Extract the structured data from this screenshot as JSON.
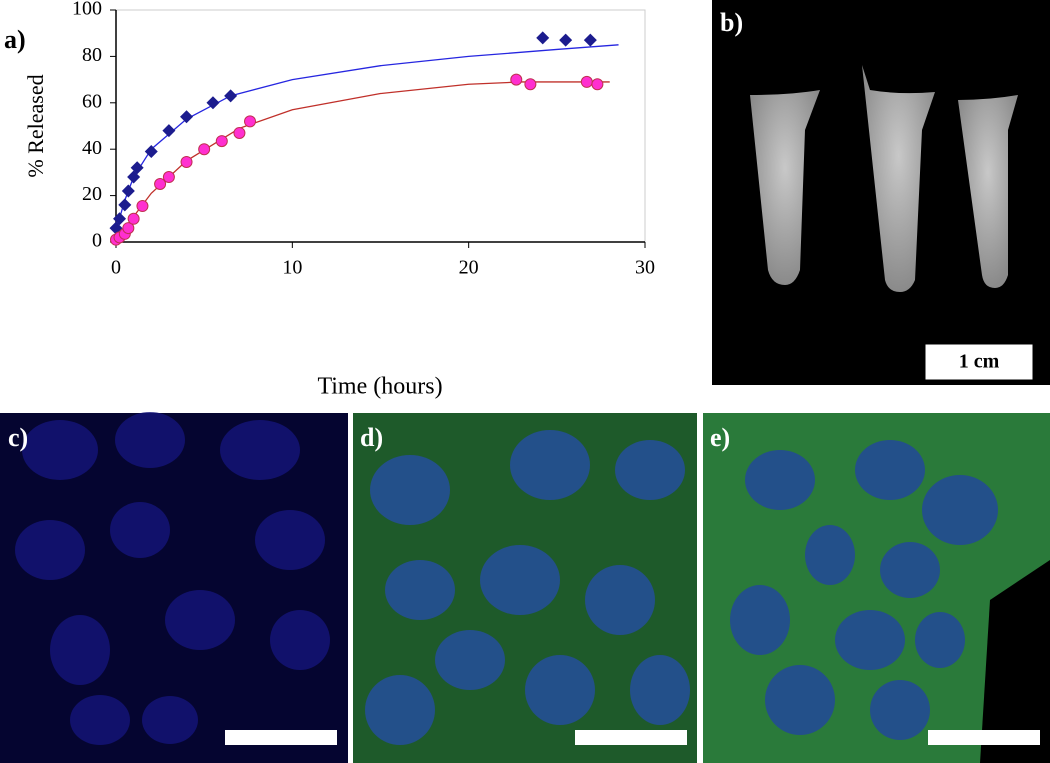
{
  "chart_data": {
    "type": "scatter",
    "y_label": "% Released",
    "x_label": "Time (hours)",
    "xlim": [
      0,
      30
    ],
    "xticks": [
      0,
      10,
      20,
      30
    ],
    "ylim": [
      0,
      100
    ],
    "yticks": [
      0,
      20,
      40,
      60,
      80,
      100
    ],
    "series": [
      {
        "style": "diamond",
        "color": "#1c1c8e",
        "x": [
          0,
          0.2,
          0.5,
          0.7,
          1,
          1.2,
          2,
          3,
          4,
          5.5,
          6.5,
          24.2,
          25.5,
          26.9
        ],
        "values": [
          6,
          10,
          16,
          22,
          28,
          32,
          39,
          48,
          54,
          60,
          63,
          88,
          87,
          87
        ]
      },
      {
        "style": "circle",
        "color": "#ff2fd0",
        "x": [
          0,
          0.2,
          0.5,
          0.7,
          1,
          1.5,
          2.5,
          3,
          4,
          5,
          6,
          7,
          7.6,
          22.7,
          23.5,
          26.7,
          27.3
        ],
        "values": [
          1,
          2,
          3.5,
          6,
          10,
          15.5,
          25,
          28,
          34.5,
          40,
          43.5,
          47,
          52,
          70,
          68,
          69,
          68
        ]
      },
      {
        "style": "line",
        "color": "#2626e0",
        "x": [
          0,
          0.5,
          1,
          2,
          4,
          6.5,
          10,
          15,
          20,
          25,
          28.5
        ],
        "values": [
          5,
          18,
          28,
          40,
          53,
          63,
          70,
          76,
          80,
          83,
          85
        ]
      },
      {
        "style": "line",
        "color": "#c0302a",
        "x": [
          0,
          1,
          2,
          4,
          7,
          10,
          15,
          20,
          23,
          28
        ],
        "values": [
          0,
          11,
          21,
          35,
          49,
          57,
          64,
          68,
          69,
          69
        ]
      }
    ]
  },
  "panel_labels": [
    "a)",
    "b)",
    "c)",
    "d)",
    "e)"
  ],
  "scale_bar": "1 cm"
}
